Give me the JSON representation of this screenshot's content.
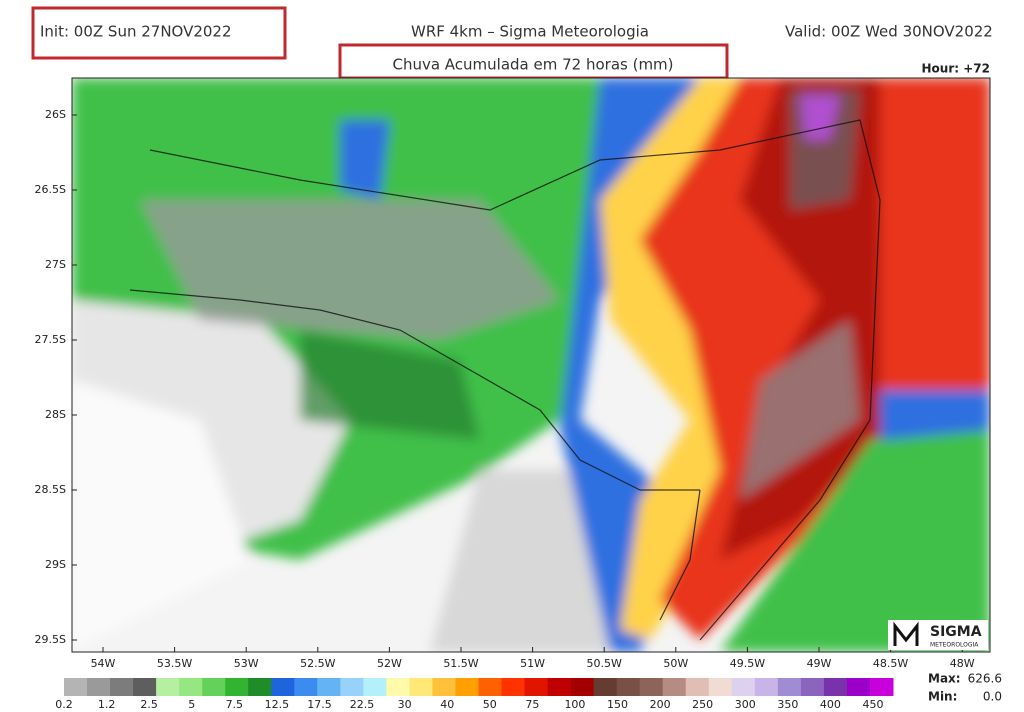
{
  "header": {
    "init": "Init: 00Z Sun 27NOV2022",
    "title": "WRF 4km – Sigma Meteorologia",
    "valid": "Valid: 00Z Wed 30NOV2022",
    "subtitle": "Chuva Acumulada em 72 horas (mm)",
    "hour": "Hour: +72"
  },
  "map": {
    "lat_labels": [
      "26S",
      "26.5S",
      "27S",
      "27.5S",
      "28S",
      "28.5S",
      "29S",
      "29.5S"
    ],
    "lon_labels": [
      "54W",
      "53.5W",
      "53W",
      "52.5W",
      "52W",
      "51.5W",
      "51W",
      "50.5W",
      "50W",
      "49.5W",
      "49W",
      "48.5W",
      "48W"
    ]
  },
  "legend": {
    "labels": [
      "0.2",
      "1.2",
      "2.5",
      "5",
      "7.5",
      "12.5",
      "17.5",
      "22.5",
      "30",
      "40",
      "50",
      "75",
      "100",
      "150",
      "200",
      "250",
      "300",
      "350",
      "400",
      "450"
    ],
    "max_label": "Max:",
    "max": "626.6",
    "min_label": "Min:",
    "min": "0.0"
  },
  "logo": {
    "name": "SIGMA",
    "sub": "METEOROLOGIA"
  }
}
